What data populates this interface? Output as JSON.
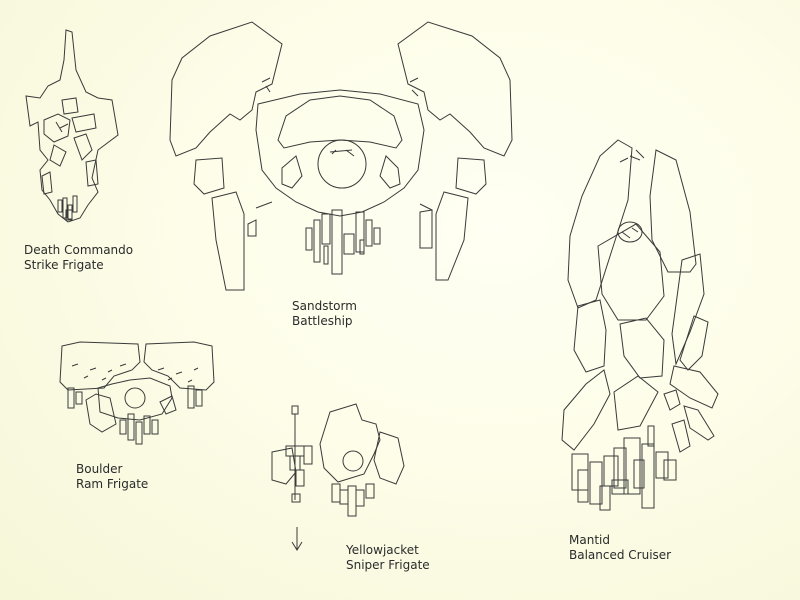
{
  "ships": [
    {
      "name": "Death Commando",
      "role": "Strike Frigate"
    },
    {
      "name": "Sandstorm",
      "role": "Battleship"
    },
    {
      "name": "Mantid",
      "role": "Balanced Cruiser"
    },
    {
      "name": "Boulder",
      "role": "Ram Frigate"
    },
    {
      "name": "Yellowjacket",
      "role": "Sniper Frigate"
    }
  ],
  "colors": {
    "background": "#fdfde9",
    "line": "#3a3a3a",
    "text": "#2b2b2b"
  },
  "icons": {
    "direction": "down-arrow-icon"
  }
}
